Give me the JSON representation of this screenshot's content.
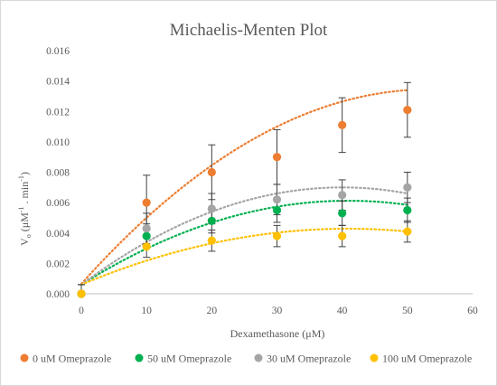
{
  "chart_data": {
    "type": "scatter",
    "title": "Michaelis-Menten Plot",
    "xlabel": "Dexamethasone (μM)",
    "ylabel_main": "V",
    "ylabel_sub": "o",
    "ylabel_rest": " (μM",
    "ylabel_sup1": "-1",
    "ylabel_mid": " . min",
    "ylabel_sup2": "-1",
    "ylabel_end": ")",
    "xlim": [
      0,
      60
    ],
    "ylim": [
      0,
      0.016
    ],
    "x_ticks": [
      "0",
      "10",
      "20",
      "30",
      "40",
      "50",
      "60"
    ],
    "y_ticks": [
      "0.000",
      "0.002",
      "0.004",
      "0.006",
      "0.008",
      "0.010",
      "0.012",
      "0.014",
      "0.016"
    ],
    "grid": false,
    "legend_position": "bottom",
    "trendline": "dotted polynomial",
    "series": [
      {
        "name": "0 uM Omeprazole",
        "color": "#ed7d31",
        "x": [
          0,
          10,
          20,
          30,
          40,
          50
        ],
        "y": [
          0.0,
          0.006,
          0.008,
          0.009,
          0.0111,
          0.0121
        ],
        "err": [
          0.0006,
          0.0018,
          0.0018,
          0.0018,
          0.0018,
          0.0018
        ],
        "fit": [
          0.00065,
          0.00048,
          -4.5e-06
        ]
      },
      {
        "name": "50 uM Omeprazole",
        "color": "#00b050",
        "x": [
          0,
          10,
          20,
          30,
          40,
          50
        ],
        "y": [
          0.0,
          0.0038,
          0.0048,
          0.0055,
          0.0053,
          0.0055
        ],
        "err": [
          0.0006,
          0.0008,
          0.0008,
          0.0008,
          0.0008,
          0.0008
        ],
        "fit": [
          0.0006,
          0.00027,
          -3.3e-06
        ]
      },
      {
        "name": "30 uM Omeprazole",
        "color": "#a5a5a5",
        "x": [
          0,
          10,
          20,
          30,
          40,
          50
        ],
        "y": [
          0.0,
          0.0043,
          0.0056,
          0.0062,
          0.0065,
          0.007
        ],
        "err": [
          0.0006,
          0.001,
          0.001,
          0.001,
          0.001,
          0.001
        ],
        "fit": [
          0.0006,
          0.00032,
          -4e-06
        ]
      },
      {
        "name": "100 uM Omeprazole",
        "color": "#ffc000",
        "x": [
          0,
          10,
          20,
          30,
          40,
          50
        ],
        "y": [
          0.0,
          0.0031,
          0.0035,
          0.0038,
          0.0038,
          0.0041
        ],
        "err": [
          0.0006,
          0.0007,
          0.0007,
          0.0007,
          0.0007,
          0.0007
        ],
        "fit": [
          0.0006,
          0.00018,
          -2.2e-06
        ]
      }
    ]
  }
}
